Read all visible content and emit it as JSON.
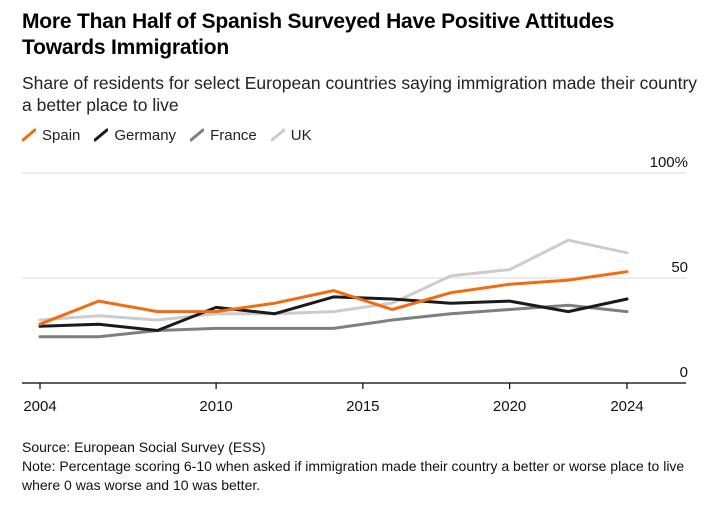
{
  "chart_data": {
    "type": "line",
    "title": "More Than Half of Spanish Surveyed Have Positive Attitudes Towards Immigration",
    "subtitle": "Share of residents for select European countries saying immigration made their country a better place to live",
    "x": [
      2004,
      2006,
      2008,
      2010,
      2012,
      2014,
      2016,
      2018,
      2020,
      2022,
      2024
    ],
    "x_ticks": [
      2004,
      2010,
      2015,
      2020,
      2024
    ],
    "x_ticks_labels": [
      "2004",
      "2010",
      "2015",
      "2020",
      "2024"
    ],
    "y_ticks": [
      0,
      50,
      100
    ],
    "y_ticks_labels": [
      "0",
      "50",
      "100%"
    ],
    "ylim": [
      0,
      100
    ],
    "xlim": [
      2003,
      2026
    ],
    "grid": "horizontal",
    "legend_position": "top-left",
    "series": [
      {
        "name": "UK",
        "color": "#cccccc",
        "values": [
          30,
          32,
          30,
          33,
          33,
          34,
          38,
          51,
          54,
          68,
          62
        ]
      },
      {
        "name": "France",
        "color": "#7f7f7f",
        "values": [
          22,
          22,
          25,
          26,
          26,
          26,
          30,
          33,
          35,
          37,
          34
        ]
      },
      {
        "name": "Germany",
        "color": "#1a1a1a",
        "values": [
          27,
          28,
          25,
          36,
          33,
          41,
          40,
          38,
          39,
          34,
          40
        ]
      },
      {
        "name": "Spain",
        "color": "#f26b0f",
        "values": [
          28,
          39,
          34,
          34,
          38,
          44,
          35,
          43,
          47,
          49,
          53
        ]
      }
    ],
    "legend": [
      "Spain",
      "Germany",
      "France",
      "UK"
    ]
  },
  "footer": {
    "source": "Source: European Social Survey (ESS)",
    "note": "Note: Percentage scoring 6-10 when asked if immigration made their country a better or worse place to live where 0 was worse and 10 was better."
  }
}
